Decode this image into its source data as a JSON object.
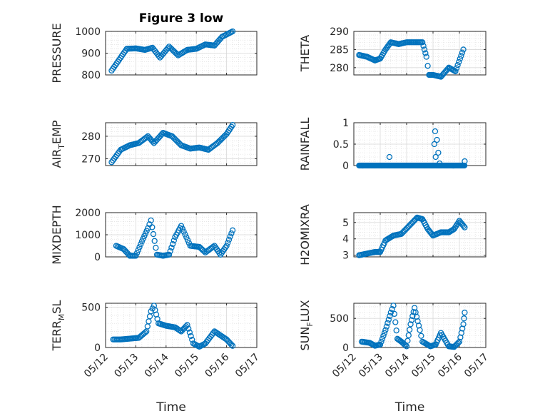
{
  "figure_title": "Figure 3 low",
  "chart_data": [
    {
      "type": "scatter",
      "id": "pressure",
      "title": "Figure 3 low",
      "ylabel": "PRESSURE",
      "ylim": [
        800,
        1000
      ],
      "yticks": [
        800,
        900,
        1000
      ],
      "ytick_labels": [
        "800",
        "900",
        "1000"
      ],
      "xlim": [
        "05/12",
        "05/17"
      ],
      "xticks": [
        "05/12",
        "05/13",
        "05/14",
        "05/15",
        "05/16",
        "05/17"
      ],
      "show_xticklabels": false,
      "xlabel": "",
      "grid": true,
      "minor_grid": true,
      "x": [
        0.2,
        0.45,
        0.7,
        1.0,
        1.3,
        1.55,
        1.8,
        2.1,
        2.4,
        2.7,
        3.0,
        3.3,
        3.6,
        3.85,
        4.2
      ],
      "y": [
        820,
        870,
        920,
        922,
        915,
        925,
        880,
        930,
        890,
        915,
        920,
        940,
        935,
        975,
        1000
      ]
    },
    {
      "type": "scatter",
      "id": "theta",
      "ylabel": "THETA",
      "ylim": [
        278,
        290
      ],
      "yticks": [
        280,
        285,
        290
      ],
      "ytick_labels": [
        "280",
        "285",
        "290"
      ],
      "xlim": [
        "05/12",
        "05/17"
      ],
      "xticks": [
        "05/12",
        "05/13",
        "05/14",
        "05/15",
        "05/16",
        "05/17"
      ],
      "show_xticklabels": false,
      "xlabel": "",
      "grid": true,
      "minor_grid": true,
      "x": [
        0.2,
        0.5,
        0.8,
        1.0,
        1.2,
        1.4,
        1.7,
        2.0,
        2.3,
        2.6,
        2.75,
        2.85,
        3.0,
        3.3,
        3.6,
        3.85,
        4.15
      ],
      "y": [
        283.5,
        283,
        282,
        282.5,
        285,
        287,
        286.5,
        287,
        287,
        287,
        283,
        278,
        278,
        277.5,
        280,
        279,
        285
      ]
    },
    {
      "type": "scatter",
      "id": "air_temp",
      "ylabel": "AIR_TEMP",
      "ylabel_display": "AIRTEMP",
      "ylim": [
        267,
        286
      ],
      "yticks": [
        270,
        280
      ],
      "ytick_labels": [
        "270",
        "280"
      ],
      "xlim": [
        "05/12",
        "05/17"
      ],
      "xticks": [
        "05/12",
        "05/13",
        "05/14",
        "05/15",
        "05/16",
        "05/17"
      ],
      "show_xticklabels": false,
      "xlabel": "",
      "grid": true,
      "minor_grid": true,
      "x": [
        0.2,
        0.5,
        0.8,
        1.1,
        1.4,
        1.6,
        1.9,
        2.2,
        2.5,
        2.8,
        3.1,
        3.4,
        3.7,
        4.0,
        4.2
      ],
      "y": [
        268.5,
        274,
        276,
        277,
        280,
        277,
        281.5,
        280,
        276,
        274.5,
        275,
        274,
        277,
        281,
        285
      ]
    },
    {
      "type": "scatter",
      "id": "rainfall",
      "ylabel": "RAINFALL",
      "ylim": [
        0,
        1
      ],
      "yticks": [
        0,
        0.5,
        1
      ],
      "ytick_labels": [
        "0",
        "0.5",
        "1"
      ],
      "xlim": [
        "05/12",
        "05/17"
      ],
      "xticks": [
        "05/12",
        "05/13",
        "05/14",
        "05/15",
        "05/16",
        "05/17"
      ],
      "show_xticklabels": false,
      "xlabel": "",
      "grid": true,
      "minor_grid": true,
      "x": [
        0.2,
        0.6,
        1.0,
        1.4,
        1.8,
        2.2,
        2.6,
        3.0,
        3.4,
        3.8,
        4.2,
        1.35,
        3.05,
        3.08,
        3.15,
        3.2,
        3.1,
        3.25,
        4.2
      ],
      "y": [
        0,
        0,
        0,
        0,
        0,
        0,
        0,
        0,
        0,
        0,
        0,
        0.2,
        0.5,
        0.8,
        0.6,
        0.3,
        0.2,
        0.05,
        0.1
      ]
    },
    {
      "type": "scatter",
      "id": "mixdepth",
      "ylabel": "MIXDEPTH",
      "ylim": [
        0,
        2000
      ],
      "yticks": [
        0,
        1000,
        2000
      ],
      "ytick_labels": [
        "0",
        "1000",
        "2000"
      ],
      "xlim": [
        "05/12",
        "05/17"
      ],
      "xticks": [
        "05/12",
        "05/13",
        "05/14",
        "05/15",
        "05/16",
        "05/17"
      ],
      "show_xticklabels": false,
      "xlabel": "",
      "grid": true,
      "minor_grid": true,
      "x": [
        0.35,
        0.6,
        0.8,
        1.0,
        1.2,
        1.4,
        1.5,
        1.7,
        1.9,
        2.1,
        2.3,
        2.5,
        2.8,
        3.1,
        3.3,
        3.6,
        3.8,
        4.0,
        4.2
      ],
      "y": [
        500,
        350,
        50,
        50,
        700,
        1300,
        1650,
        100,
        50,
        100,
        900,
        1400,
        500,
        450,
        200,
        500,
        100,
        500,
        1200
      ]
    },
    {
      "type": "scatter",
      "id": "h2omixra",
      "ylabel": "H2OMIXRA",
      "ylim": [
        2.9,
        5.6
      ],
      "yticks": [
        3,
        4,
        5
      ],
      "ytick_labels": [
        "3",
        "4",
        "5"
      ],
      "xlim": [
        "05/12",
        "05/17"
      ],
      "xticks": [
        "05/12",
        "05/13",
        "05/14",
        "05/15",
        "05/16",
        "05/17"
      ],
      "show_xticklabels": false,
      "xlabel": "",
      "grid": true,
      "minor_grid": true,
      "x": [
        0.2,
        0.5,
        0.8,
        1.0,
        1.2,
        1.5,
        1.8,
        2.1,
        2.4,
        2.6,
        2.8,
        3.0,
        3.3,
        3.6,
        3.8,
        4.0,
        4.2
      ],
      "y": [
        3.0,
        3.1,
        3.2,
        3.2,
        3.9,
        4.2,
        4.3,
        4.8,
        5.3,
        5.2,
        4.6,
        4.2,
        4.4,
        4.4,
        4.6,
        5.1,
        4.7
      ]
    },
    {
      "type": "scatter",
      "id": "terr_msl",
      "ylabel": "TERR_MSL",
      "ylabel_display": "TERRMSL",
      "ylim": [
        0,
        550
      ],
      "yticks": [
        0,
        500
      ],
      "ytick_labels": [
        "0",
        "500"
      ],
      "xlim": [
        "05/12",
        "05/17"
      ],
      "xticks": [
        "05/12",
        "05/13",
        "05/14",
        "05/15",
        "05/16",
        "05/17"
      ],
      "xtick_labels": [
        "05/12",
        "05/13",
        "05/14",
        "05/15",
        "05/16",
        "05/17"
      ],
      "show_xticklabels": true,
      "xlabel": "Time",
      "grid": true,
      "minor_grid": true,
      "x": [
        0.25,
        0.5,
        0.8,
        1.1,
        1.35,
        1.5,
        1.6,
        1.75,
        2.0,
        2.3,
        2.5,
        2.7,
        2.9,
        3.1,
        3.3,
        3.6,
        3.8,
        4.0,
        4.2
      ],
      "y": [
        100,
        100,
        110,
        120,
        200,
        450,
        520,
        300,
        270,
        250,
        200,
        280,
        50,
        10,
        50,
        200,
        150,
        100,
        20
      ]
    },
    {
      "type": "scatter",
      "id": "sun_flux",
      "ylabel": "SUN_FLUX",
      "ylabel_display": "SUNFLUX",
      "ylim": [
        0,
        760
      ],
      "yticks": [
        0,
        500
      ],
      "ytick_labels": [
        "0",
        "500"
      ],
      "xlim": [
        "05/12",
        "05/17"
      ],
      "xticks": [
        "05/12",
        "05/13",
        "05/14",
        "05/15",
        "05/16",
        "05/17"
      ],
      "xtick_labels": [
        "05/12",
        "05/13",
        "05/14",
        "05/15",
        "05/16",
        "05/17"
      ],
      "show_xticklabels": true,
      "xlabel": "Time",
      "grid": true,
      "minor_grid": true,
      "x": [
        0.3,
        0.6,
        0.8,
        1.0,
        1.2,
        1.4,
        1.5,
        1.65,
        1.8,
        2.0,
        2.15,
        2.3,
        2.5,
        2.6,
        2.9,
        3.1,
        3.3,
        3.6,
        3.8,
        4.0,
        4.15,
        4.2
      ],
      "y": [
        100,
        80,
        30,
        50,
        300,
        600,
        720,
        150,
        100,
        20,
        400,
        680,
        300,
        100,
        20,
        50,
        250,
        20,
        10,
        100,
        400,
        600
      ]
    }
  ]
}
